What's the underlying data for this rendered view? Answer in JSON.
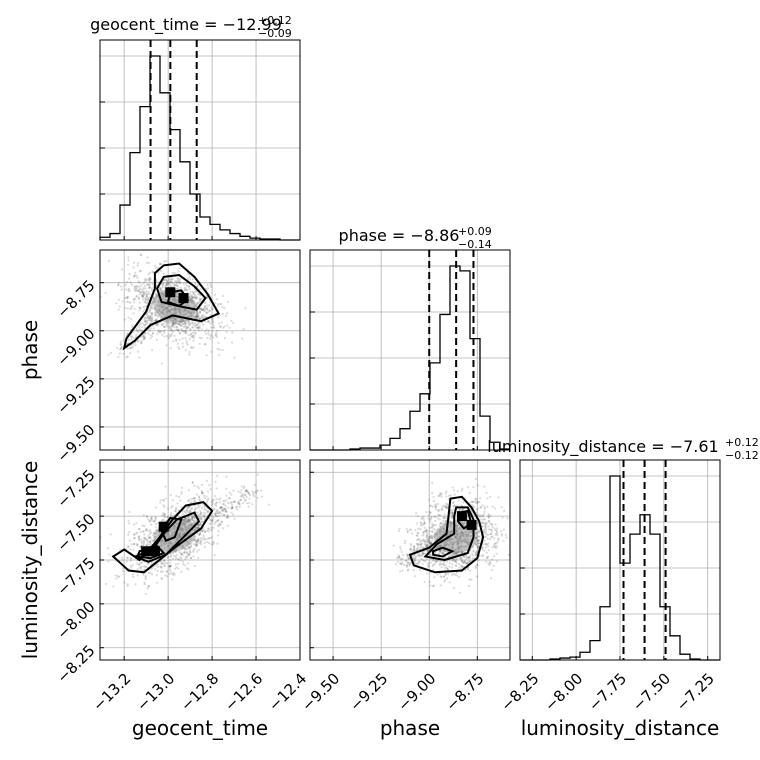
{
  "chart_data": {
    "type": "corner",
    "parameters": [
      {
        "name": "geocent_time",
        "label": "geocent_time",
        "title_prefix": "geocent_time = ",
        "median": "−12.99",
        "plus": "+0.12",
        "minus": "−0.09",
        "range": [
          -13.31,
          -12.4
        ],
        "ticks": [
          -13.2,
          -13.0,
          -12.8,
          -12.6,
          -12.4
        ],
        "tick_labels": [
          "−13.2",
          "−13.0",
          "−12.8",
          "−12.6",
          "−12.4"
        ],
        "quantiles": [
          -13.08,
          -12.99,
          -12.87
        ],
        "hist_edges_start": -13.31,
        "hist_bin_width": 0.0455,
        "hist_counts": [
          3,
          7,
          38,
          95,
          145,
          200,
          160,
          120,
          85,
          50,
          25,
          17,
          11,
          7,
          4,
          2,
          1,
          1,
          0,
          0
        ]
      },
      {
        "name": "phase",
        "label": "phase",
        "title_prefix": "phase = ",
        "median": "−8.86",
        "plus": "+0.09",
        "minus": "−0.14",
        "range": [
          -9.62,
          -8.58
        ],
        "ticks": [
          -9.5,
          -9.25,
          -9.0,
          -8.75
        ],
        "tick_labels": [
          "−9.50",
          "−9.25",
          "−9.00",
          "−8.75"
        ],
        "quantiles": [
          -9.0,
          -8.86,
          -8.77
        ],
        "hist_edges_start": -9.62,
        "hist_bin_width": 0.052,
        "hist_counts": [
          0,
          0,
          0,
          0,
          1,
          2,
          2,
          5,
          12,
          22,
          40,
          58,
          90,
          140,
          190,
          185,
          115,
          35,
          8,
          1
        ]
      },
      {
        "name": "luminosity_distance",
        "label": "luminosity_distance",
        "title_prefix": "luminosity_distance = ",
        "median": "−7.61",
        "plus": "+0.12",
        "minus": "−0.12",
        "range": [
          -8.32,
          -7.18
        ],
        "ticks": [
          -8.25,
          -8.0,
          -7.75,
          -7.5,
          -7.25
        ],
        "tick_labels": [
          "−8.25",
          "−8.00",
          "−7.75",
          "−7.50",
          "−7.25"
        ],
        "quantiles": [
          -7.73,
          -7.61,
          -7.49
        ],
        "hist_edges_start": -8.32,
        "hist_bin_width": 0.057,
        "hist_counts": [
          0,
          0,
          0,
          1,
          2,
          3,
          8,
          20,
          55,
          190,
          100,
          130,
          150,
          130,
          55,
          25,
          6,
          1,
          0,
          0
        ]
      }
    ],
    "pairs": [
      {
        "x": "geocent_time",
        "y": "phase",
        "samples_center": [
          -12.97,
          -8.87
        ],
        "samples_spread": [
          0.1,
          0.09
        ],
        "correlation": -0.45,
        "tail_toward": [
          -13.2,
          -9.1
        ],
        "hot_spots": [
          [
            -12.93,
            -8.83
          ],
          [
            -12.99,
            -8.8
          ]
        ],
        "contours": [
          [
            [
              -13.02,
              -8.66
            ],
            [
              -12.95,
              -8.65
            ],
            [
              -12.88,
              -8.72
            ],
            [
              -12.82,
              -8.81
            ],
            [
              -12.77,
              -8.91
            ],
            [
              -12.85,
              -8.95
            ],
            [
              -12.98,
              -8.92
            ],
            [
              -13.08,
              -8.97
            ],
            [
              -13.15,
              -9.05
            ],
            [
              -13.2,
              -9.09
            ],
            [
              -13.19,
              -9.04
            ],
            [
              -13.1,
              -8.9
            ],
            [
              -13.06,
              -8.78
            ],
            [
              -13.06,
              -8.7
            ]
          ],
          [
            [
              -13.02,
              -8.72
            ],
            [
              -12.95,
              -8.71
            ],
            [
              -12.88,
              -8.77
            ],
            [
              -12.83,
              -8.83
            ],
            [
              -12.87,
              -8.89
            ],
            [
              -12.96,
              -8.87
            ],
            [
              -13.03,
              -8.85
            ],
            [
              -13.05,
              -8.78
            ]
          ],
          [
            [
              -12.99,
              -8.8
            ],
            [
              -12.94,
              -8.79
            ],
            [
              -12.91,
              -8.84
            ],
            [
              -12.95,
              -8.87
            ],
            [
              -13.0,
              -8.85
            ]
          ]
        ]
      },
      {
        "x": "geocent_time",
        "y": "luminosity_distance",
        "samples_center": [
          -12.97,
          -7.61
        ],
        "samples_spread": [
          0.1,
          0.11
        ],
        "correlation": 0.55,
        "tail_toward": [
          -12.6,
          -7.35
        ],
        "hot_spots": [
          [
            -13.02,
            -7.56
          ],
          [
            -13.06,
            -7.7
          ],
          [
            -13.1,
            -7.7
          ]
        ],
        "contours": [
          [
            [
              -13.13,
              -7.75
            ],
            [
              -13.05,
              -7.64
            ],
            [
              -12.98,
              -7.52
            ],
            [
              -12.92,
              -7.44
            ],
            [
              -12.84,
              -7.42
            ],
            [
              -12.8,
              -7.47
            ],
            [
              -12.85,
              -7.57
            ],
            [
              -12.97,
              -7.68
            ],
            [
              -13.05,
              -7.76
            ],
            [
              -13.11,
              -7.82
            ],
            [
              -13.18,
              -7.81
            ],
            [
              -13.25,
              -7.73
            ],
            [
              -13.2,
              -7.69
            ]
          ],
          [
            [
              -13.07,
              -7.69
            ],
            [
              -13.02,
              -7.6
            ],
            [
              -12.96,
              -7.52
            ],
            [
              -12.88,
              -7.48
            ],
            [
              -12.86,
              -7.53
            ],
            [
              -12.93,
              -7.62
            ],
            [
              -13.01,
              -7.72
            ],
            [
              -13.09,
              -7.76
            ],
            [
              -13.15,
              -7.73
            ]
          ],
          [
            [
              -13.03,
              -7.58
            ],
            [
              -12.99,
              -7.51
            ],
            [
              -12.94,
              -7.52
            ],
            [
              -12.97,
              -7.62
            ],
            [
              -13.01,
              -7.64
            ]
          ],
          [
            [
              -13.13,
              -7.7
            ],
            [
              -13.05,
              -7.67
            ],
            [
              -13.02,
              -7.71
            ],
            [
              -13.08,
              -7.74
            ],
            [
              -13.14,
              -7.73
            ]
          ]
        ]
      },
      {
        "x": "phase",
        "y": "luminosity_distance",
        "samples_center": [
          -8.86,
          -7.62
        ],
        "samples_spread": [
          0.1,
          0.11
        ],
        "correlation": 0.15,
        "tail_toward": [
          -9.15,
          -7.75
        ],
        "hot_spots": [
          [
            -8.83,
            -7.5
          ],
          [
            -8.78,
            -7.55
          ]
        ],
        "contours": [
          [
            [
              -8.89,
              -7.4
            ],
            [
              -8.83,
              -7.39
            ],
            [
              -8.78,
              -7.45
            ],
            [
              -8.74,
              -7.53
            ],
            [
              -8.72,
              -7.62
            ],
            [
              -8.75,
              -7.74
            ],
            [
              -8.83,
              -7.81
            ],
            [
              -8.97,
              -7.82
            ],
            [
              -9.08,
              -7.78
            ],
            [
              -9.1,
              -7.72
            ],
            [
              -9.0,
              -7.68
            ],
            [
              -8.91,
              -7.6
            ],
            [
              -8.9,
              -7.5
            ]
          ],
          [
            [
              -8.86,
              -7.45
            ],
            [
              -8.8,
              -7.45
            ],
            [
              -8.77,
              -7.52
            ],
            [
              -8.77,
              -7.62
            ],
            [
              -8.8,
              -7.71
            ],
            [
              -8.92,
              -7.75
            ],
            [
              -9.02,
              -7.73
            ],
            [
              -8.96,
              -7.66
            ],
            [
              -8.87,
              -7.6
            ],
            [
              -8.87,
              -7.5
            ]
          ],
          [
            [
              -8.84,
              -7.48
            ],
            [
              -8.8,
              -7.47
            ],
            [
              -8.78,
              -7.54
            ],
            [
              -8.82,
              -7.57
            ],
            [
              -8.85,
              -7.53
            ]
          ],
          [
            [
              -8.98,
              -7.7
            ],
            [
              -8.93,
              -7.68
            ],
            [
              -8.88,
              -7.7
            ],
            [
              -8.93,
              -7.73
            ],
            [
              -8.98,
              -7.72
            ]
          ]
        ]
      }
    ]
  }
}
